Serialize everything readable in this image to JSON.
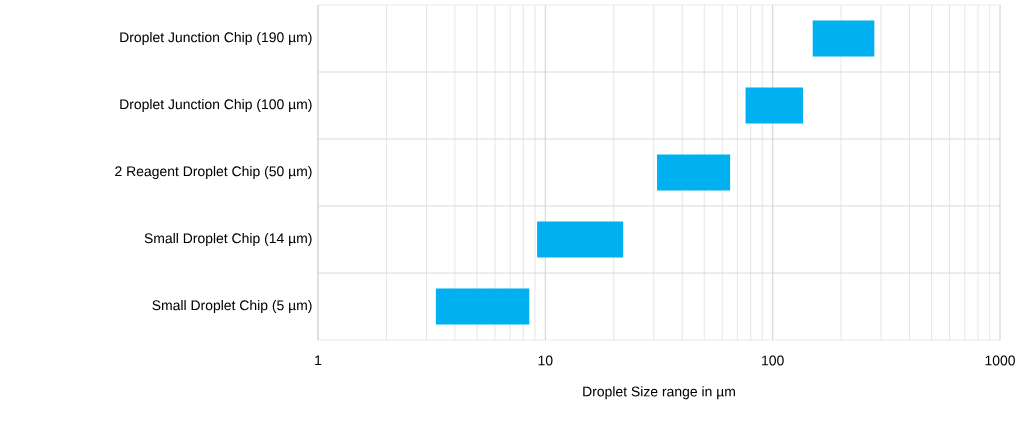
{
  "chart_data": {
    "type": "bar",
    "orientation": "horizontal",
    "xlabel": "Droplet Size range in µm",
    "categories": [
      "Droplet Junction Chip (190 µm)",
      "Droplet Junction Chip (100 µm)",
      "2 Reagent Droplet Chip (50 µm)",
      "Small Droplet Chip (14 µm)",
      "Small Droplet Chip (5 µm)"
    ],
    "base": [
      150,
      76,
      31,
      9.2,
      3.3
    ],
    "values": [
      130,
      60,
      34,
      12.8,
      5.2
    ],
    "color": "#00b0f0",
    "log": "x",
    "xlim": [
      1,
      1000
    ],
    "xticks": [
      1,
      10,
      100,
      1000
    ],
    "grid": true
  }
}
